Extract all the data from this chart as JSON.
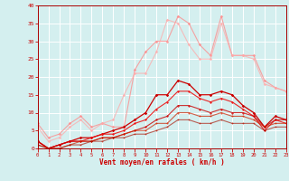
{
  "x": [
    0,
    1,
    2,
    3,
    4,
    5,
    6,
    7,
    8,
    9,
    10,
    11,
    12,
    13,
    14,
    15,
    16,
    17,
    18,
    19,
    20,
    21,
    22,
    23
  ],
  "series": [
    {
      "color": "#ff8888",
      "alpha": 0.75,
      "lw": 0.8,
      "marker": "D",
      "ms": 1.8,
      "values": [
        7,
        3,
        4,
        7,
        9,
        6,
        7,
        6,
        6,
        22,
        27,
        30,
        30,
        37,
        35,
        29,
        26,
        37,
        26,
        26,
        26,
        19,
        17,
        16
      ]
    },
    {
      "color": "#ffaaaa",
      "alpha": 0.75,
      "lw": 0.8,
      "marker": "D",
      "ms": 1.8,
      "values": [
        6,
        2,
        3,
        6,
        8,
        5,
        7,
        8,
        15,
        21,
        21,
        27,
        36,
        35,
        29,
        25,
        25,
        35,
        26,
        26,
        25,
        18,
        17,
        16
      ]
    },
    {
      "color": "#cc0000",
      "alpha": 1.0,
      "lw": 0.9,
      "marker": "D",
      "ms": 1.8,
      "values": [
        2,
        0,
        1,
        2,
        3,
        3,
        4,
        5,
        6,
        8,
        10,
        15,
        15,
        19,
        18,
        15,
        15,
        16,
        15,
        12,
        10,
        6,
        9,
        8
      ]
    },
    {
      "color": "#ee1111",
      "alpha": 0.9,
      "lw": 0.8,
      "marker": "D",
      "ms": 1.5,
      "values": [
        2,
        0,
        1,
        2,
        2,
        3,
        4,
        4,
        5,
        7,
        8,
        11,
        13,
        16,
        16,
        14,
        13,
        14,
        13,
        11,
        9,
        5,
        8,
        7
      ]
    },
    {
      "color": "#cc0000",
      "alpha": 0.8,
      "lw": 0.8,
      "marker": "D",
      "ms": 1.5,
      "values": [
        2,
        0,
        1,
        2,
        2,
        2,
        3,
        3,
        4,
        5,
        6,
        8,
        9,
        12,
        12,
        11,
        10,
        11,
        10,
        10,
        9,
        6,
        8,
        8
      ]
    },
    {
      "color": "#cc2200",
      "alpha": 0.7,
      "lw": 0.8,
      "marker": "D",
      "ms": 1.3,
      "values": [
        1,
        0,
        0,
        1,
        2,
        2,
        3,
        3,
        4,
        5,
        5,
        7,
        7,
        10,
        10,
        9,
        9,
        10,
        9,
        9,
        8,
        6,
        7,
        7
      ]
    },
    {
      "color": "#aa1100",
      "alpha": 0.65,
      "lw": 0.8,
      "marker": "D",
      "ms": 1.2,
      "values": [
        1,
        0,
        0,
        1,
        1,
        2,
        2,
        3,
        3,
        4,
        4,
        5,
        6,
        8,
        8,
        7,
        7,
        8,
        7,
        7,
        7,
        5,
        6,
        6
      ]
    }
  ],
  "xlabel": "Vent moyen/en rafales ( km/h )",
  "xlim": [
    0,
    23
  ],
  "ylim": [
    0,
    40
  ],
  "yticks": [
    0,
    5,
    10,
    15,
    20,
    25,
    30,
    35,
    40
  ],
  "xticks": [
    0,
    1,
    2,
    3,
    4,
    5,
    6,
    7,
    8,
    9,
    10,
    11,
    12,
    13,
    14,
    15,
    16,
    17,
    18,
    19,
    20,
    21,
    22,
    23
  ],
  "bg_color": "#d4efef",
  "grid_color": "#ffffff",
  "tick_color": "#cc0000",
  "label_color": "#cc0000",
  "axis_color": "#aa0000"
}
